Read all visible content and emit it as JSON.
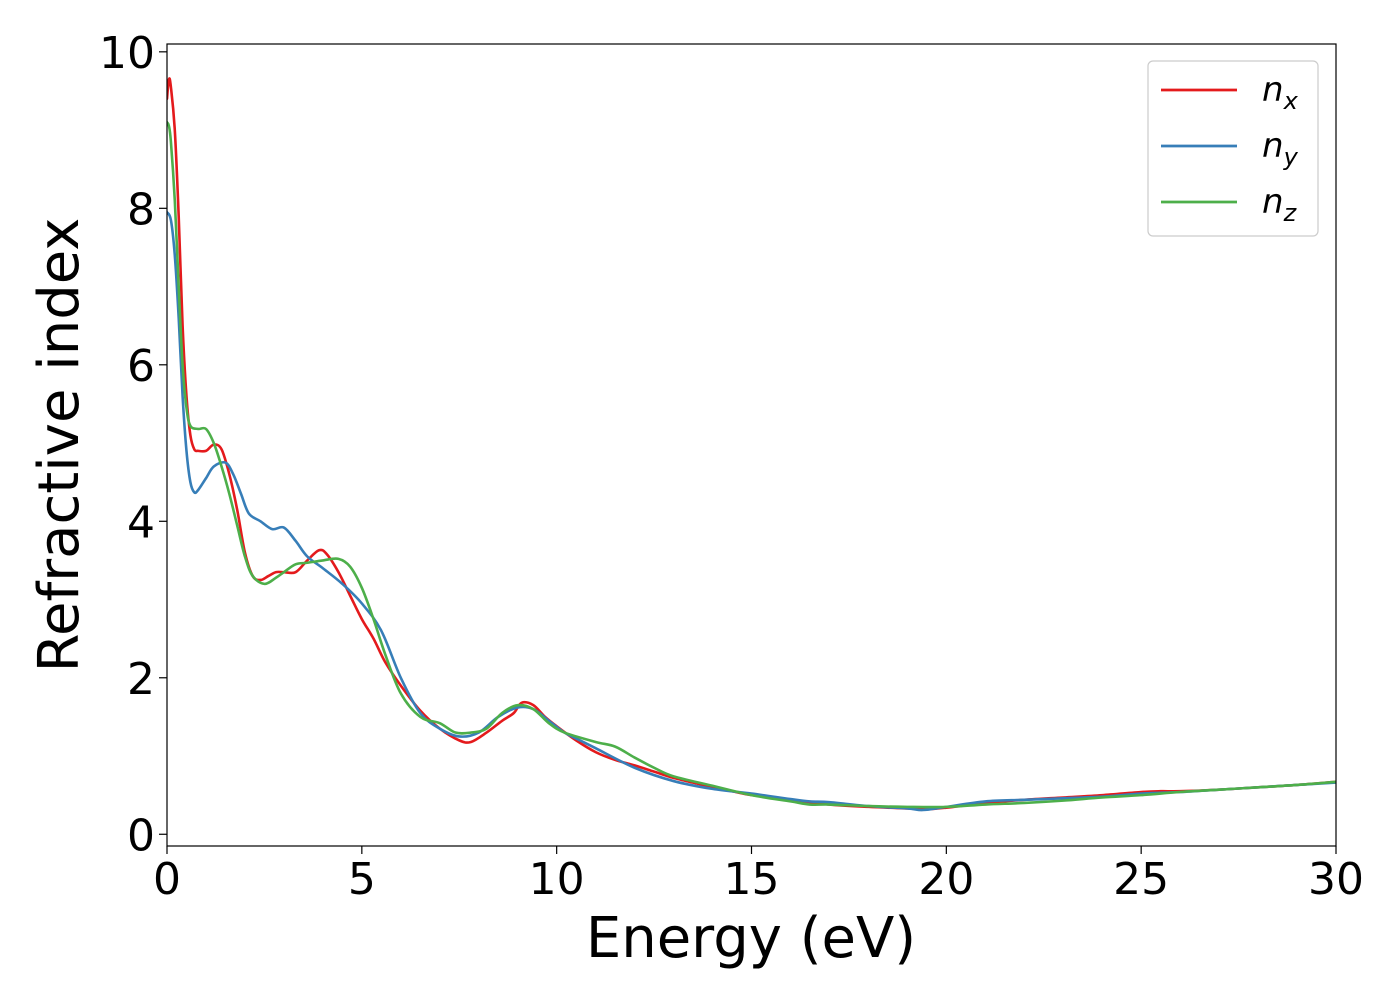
{
  "chart_data": {
    "type": "line",
    "xlabel": "Energy (eV)",
    "ylabel": "Refractive index",
    "xlim": [
      0,
      30
    ],
    "ylim": [
      -0.15,
      10.1
    ],
    "xticks": [
      0,
      5,
      10,
      15,
      20,
      25,
      30
    ],
    "xtick_labels": [
      "0",
      "5",
      "10",
      "15",
      "20",
      "25",
      "30"
    ],
    "yticks": [
      0,
      2,
      4,
      6,
      8,
      10
    ],
    "ytick_labels": [
      "0",
      "2",
      "4",
      "6",
      "8",
      "10"
    ],
    "grid": false,
    "legend_position": "top-right",
    "series": [
      {
        "name": "n",
        "subscript": "x",
        "color": "#e41a1c",
        "x": [
          0.0,
          0.05,
          0.1,
          0.2,
          0.3,
          0.4,
          0.5,
          0.6,
          0.7,
          0.8,
          1.0,
          1.2,
          1.4,
          1.6,
          1.8,
          2.0,
          2.2,
          2.4,
          2.6,
          2.8,
          3.0,
          3.3,
          3.6,
          3.9,
          4.1,
          4.4,
          4.7,
          5.0,
          5.3,
          5.6,
          6.0,
          6.5,
          7.0,
          7.5,
          7.8,
          8.2,
          8.6,
          8.9,
          9.1,
          9.4,
          9.7,
          10.0,
          10.5,
          11.0,
          11.5,
          12.0,
          12.5,
          13.0,
          13.5,
          14.0,
          14.5,
          15.0,
          16.0,
          17.0,
          18.0,
          19.0,
          19.5,
          20.0,
          21.0,
          22.0,
          23.0,
          24.0,
          25.0,
          25.5,
          26.0,
          27.0,
          28.0,
          29.0,
          30.0
        ],
        "y": [
          9.4,
          9.65,
          9.55,
          9.0,
          7.9,
          6.5,
          5.6,
          5.1,
          4.92,
          4.9,
          4.9,
          4.98,
          4.92,
          4.6,
          4.15,
          3.6,
          3.3,
          3.25,
          3.3,
          3.35,
          3.35,
          3.35,
          3.5,
          3.63,
          3.58,
          3.35,
          3.05,
          2.75,
          2.5,
          2.2,
          1.9,
          1.58,
          1.35,
          1.2,
          1.18,
          1.3,
          1.45,
          1.55,
          1.68,
          1.65,
          1.5,
          1.38,
          1.2,
          1.05,
          0.95,
          0.88,
          0.8,
          0.72,
          0.66,
          0.6,
          0.55,
          0.5,
          0.44,
          0.38,
          0.35,
          0.33,
          0.32,
          0.34,
          0.4,
          0.44,
          0.47,
          0.5,
          0.54,
          0.55,
          0.55,
          0.57,
          0.6,
          0.63,
          0.67
        ]
      },
      {
        "name": "n",
        "subscript": "y",
        "color": "#377eb8",
        "x": [
          0.0,
          0.1,
          0.2,
          0.3,
          0.4,
          0.5,
          0.6,
          0.7,
          0.8,
          1.0,
          1.2,
          1.5,
          1.7,
          1.9,
          2.1,
          2.4,
          2.7,
          3.0,
          3.3,
          3.6,
          4.0,
          4.5,
          5.0,
          5.5,
          6.0,
          6.5,
          7.0,
          7.5,
          8.0,
          8.5,
          9.0,
          9.4,
          9.8,
          10.2,
          10.6,
          11.0,
          12.0,
          13.0,
          14.0,
          15.0,
          16.0,
          16.5,
          17.0,
          18.0,
          19.0,
          19.4,
          20.0,
          21.0,
          22.0,
          23.0,
          24.0,
          25.0,
          26.0,
          27.0,
          28.0,
          29.0,
          30.0
        ],
        "y": [
          7.95,
          7.85,
          7.4,
          6.6,
          5.6,
          4.9,
          4.5,
          4.37,
          4.4,
          4.55,
          4.7,
          4.75,
          4.6,
          4.35,
          4.1,
          4.0,
          3.9,
          3.92,
          3.75,
          3.55,
          3.4,
          3.2,
          2.95,
          2.6,
          2.0,
          1.55,
          1.35,
          1.25,
          1.3,
          1.5,
          1.62,
          1.6,
          1.45,
          1.3,
          1.2,
          1.1,
          0.85,
          0.68,
          0.58,
          0.52,
          0.45,
          0.42,
          0.41,
          0.36,
          0.33,
          0.31,
          0.35,
          0.42,
          0.44,
          0.46,
          0.48,
          0.52,
          0.54,
          0.57,
          0.6,
          0.63,
          0.66
        ]
      },
      {
        "name": "n",
        "subscript": "z",
        "color": "#4daf4a",
        "x": [
          0.0,
          0.05,
          0.1,
          0.2,
          0.3,
          0.4,
          0.5,
          0.6,
          0.8,
          1.0,
          1.2,
          1.4,
          1.6,
          1.8,
          2.0,
          2.2,
          2.5,
          2.8,
          3.0,
          3.3,
          3.6,
          4.0,
          4.4,
          4.7,
          5.0,
          5.3,
          5.6,
          6.0,
          6.5,
          7.0,
          7.4,
          7.8,
          8.2,
          8.6,
          9.0,
          9.4,
          9.8,
          10.2,
          11.0,
          11.5,
          12.0,
          12.5,
          13.0,
          14.0,
          15.0,
          16.0,
          16.5,
          17.0,
          18.0,
          19.0,
          20.0,
          21.0,
          22.0,
          23.0,
          24.0,
          25.0,
          26.0,
          27.0,
          28.0,
          29.0,
          30.0
        ],
        "y": [
          9.1,
          9.05,
          8.85,
          8.1,
          7.0,
          6.0,
          5.45,
          5.22,
          5.18,
          5.18,
          5.0,
          4.7,
          4.35,
          3.95,
          3.55,
          3.3,
          3.2,
          3.28,
          3.35,
          3.45,
          3.47,
          3.5,
          3.52,
          3.42,
          3.15,
          2.75,
          2.3,
          1.8,
          1.5,
          1.42,
          1.3,
          1.3,
          1.35,
          1.55,
          1.65,
          1.6,
          1.42,
          1.3,
          1.18,
          1.12,
          0.98,
          0.85,
          0.74,
          0.62,
          0.5,
          0.42,
          0.38,
          0.38,
          0.36,
          0.35,
          0.35,
          0.38,
          0.4,
          0.43,
          0.47,
          0.5,
          0.54,
          0.57,
          0.6,
          0.63,
          0.67
        ]
      }
    ]
  }
}
